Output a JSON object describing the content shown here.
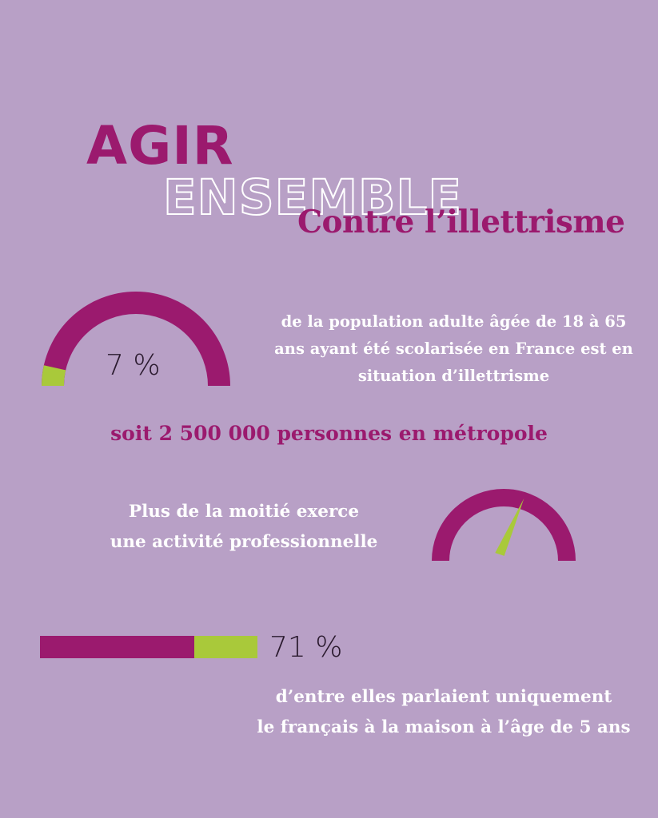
{
  "colors": {
    "background": "#b8a0c6",
    "accent_magenta": "#9b1a6e",
    "accent_green": "#a9c93a",
    "white": "#ffffff",
    "text_dark": "#2a1a2e"
  },
  "header": {
    "agir": "AGIR",
    "ensemble": "ENSEMBLE",
    "contre": "Contre l’illettrisme"
  },
  "stat1": {
    "percent_label": "7 %",
    "percent_value": 7,
    "description": "de la population adulte âgée de 18 à 65 ans ayant été scolarisée en France est en situation d’illettrisme",
    "subline": "soit 2 500 000 personnes en métropole"
  },
  "stat2": {
    "description_line1": "Plus de la moitié exerce",
    "description_line2": "une activité professionnelle",
    "gauge_needle_fraction": 0.6
  },
  "stat3": {
    "percent_label": "71 %",
    "percent_value": 71,
    "description_line1": "d’entre elles parlaient uniquement",
    "description_line2": "le français à la maison à l’âge de 5 ans"
  }
}
